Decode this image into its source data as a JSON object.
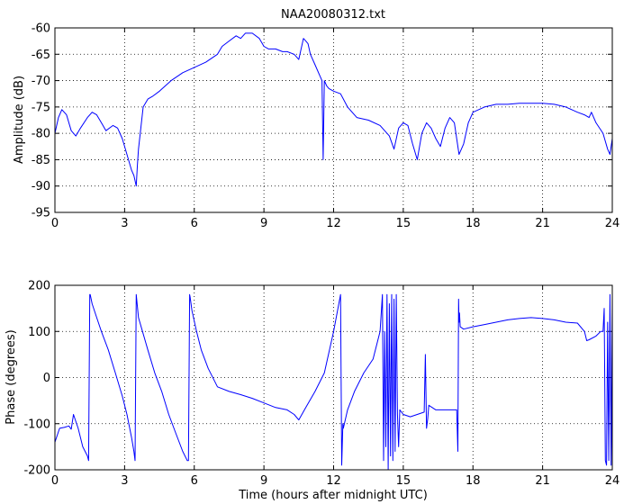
{
  "chart_data": [
    {
      "type": "line",
      "title": "NAA20080312.txt",
      "xlabel": "",
      "ylabel": "Amplitude (dB)",
      "xlim": [
        0,
        24
      ],
      "ylim": [
        -95,
        -60
      ],
      "xticks": [
        0,
        3,
        6,
        9,
        12,
        15,
        18,
        21,
        24
      ],
      "yticks": [
        -60,
        -65,
        -70,
        -75,
        -80,
        -85,
        -90,
        -95
      ],
      "grid": true,
      "line_color": "#0000ff",
      "series": [
        {
          "x": [
            0,
            0.15,
            0.3,
            0.5,
            0.7,
            0.9,
            1.1,
            1.4,
            1.6,
            1.8,
            2.0,
            2.2,
            2.5,
            2.7,
            2.9,
            3.1,
            3.3,
            3.4,
            3.5,
            3.55,
            3.6,
            3.7,
            3.8,
            4.0,
            4.2,
            4.5,
            5.0,
            5.5,
            6.0,
            6.5,
            7.0,
            7.2,
            7.5,
            7.8,
            8.0,
            8.2,
            8.5,
            8.8,
            9.0,
            9.2,
            9.5,
            9.8,
            10.0,
            10.3,
            10.5,
            10.7,
            10.8,
            10.9,
            11.0,
            11.2,
            11.4,
            11.5,
            11.55,
            11.6,
            11.65,
            11.7,
            11.8,
            12.0,
            12.3,
            12.6,
            13.0,
            13.5,
            14.0,
            14.2,
            14.4,
            14.6,
            14.8,
            15.0,
            15.2,
            15.4,
            15.6,
            15.8,
            16.0,
            16.2,
            16.4,
            16.6,
            16.8,
            17.0,
            17.2,
            17.4,
            17.6,
            17.8,
            18.0,
            18.5,
            19.0,
            19.5,
            20.0,
            20.5,
            21.0,
            21.5,
            22.0,
            22.5,
            22.8,
            23.0,
            23.1,
            23.3,
            23.6,
            23.8,
            23.9,
            24.0
          ],
          "y": [
            -80,
            -77,
            -75.5,
            -76.5,
            -79.5,
            -80.5,
            -79,
            -77,
            -76,
            -76.5,
            -78,
            -79.5,
            -78.5,
            -79,
            -81,
            -84,
            -87,
            -88,
            -90,
            -86,
            -83,
            -79,
            -75,
            -73.5,
            -73,
            -72,
            -70,
            -68.5,
            -67.5,
            -66.5,
            -65,
            -63.5,
            -62.5,
            -61.5,
            -62,
            -61,
            -61,
            -62,
            -63.5,
            -64,
            -64,
            -64.5,
            -64.5,
            -65,
            -66,
            -62,
            -62.5,
            -63,
            -65,
            -67,
            -69,
            -70,
            -85,
            -70,
            -70.5,
            -71,
            -71.5,
            -72,
            -72.5,
            -75,
            -77,
            -77.5,
            -78.5,
            -79.5,
            -80.5,
            -83,
            -79,
            -78,
            -78.5,
            -82,
            -85,
            -80,
            -78,
            -79,
            -81,
            -82.5,
            -79,
            -77,
            -78,
            -84,
            -82,
            -78,
            -76,
            -75,
            -74.5,
            -74.5,
            -74.3,
            -74.3,
            -74.3,
            -74.5,
            -75,
            -76,
            -76.5,
            -77,
            -76,
            -78,
            -80,
            -83,
            -84,
            -81
          ]
        }
      ]
    },
    {
      "type": "line",
      "title": "",
      "xlabel": "Time (hours after midnight UTC)",
      "ylabel": "Phase (degrees)",
      "xlim": [
        0,
        24
      ],
      "ylim": [
        -200,
        200
      ],
      "xticks": [
        0,
        3,
        6,
        9,
        12,
        15,
        18,
        21,
        24
      ],
      "yticks": [
        200,
        100,
        0,
        -100,
        -200
      ],
      "grid": true,
      "line_color": "#0000ff",
      "series": [
        {
          "x": [
            0,
            0.2,
            0.4,
            0.6,
            0.7,
            0.8,
            1.0,
            1.2,
            1.4,
            1.45,
            1.5,
            1.52,
            1.6,
            1.8,
            2.0,
            2.3,
            2.6,
            2.9,
            3.1,
            3.3,
            3.4,
            3.45,
            3.5,
            3.52,
            3.6,
            3.8,
            4.0,
            4.3,
            4.6,
            4.9,
            5.2,
            5.5,
            5.7,
            5.75,
            5.8,
            5.82,
            5.9,
            6.1,
            6.3,
            6.6,
            7.0,
            7.5,
            8.0,
            8.5,
            9.0,
            9.5,
            10.0,
            10.3,
            10.5,
            10.8,
            11.2,
            11.6,
            12.0,
            12.3,
            12.35,
            12.4,
            12.42,
            12.6,
            12.9,
            13.3,
            13.7,
            14.0,
            14.1,
            14.15,
            14.2,
            14.25,
            14.3,
            14.35,
            14.4,
            14.45,
            14.5,
            14.55,
            14.6,
            14.65,
            14.7,
            14.75,
            14.8,
            14.85,
            15.0,
            15.3,
            15.6,
            15.9,
            15.95,
            16.0,
            16.05,
            16.1,
            16.4,
            16.7,
            17.0,
            17.3,
            17.35,
            17.38,
            17.4,
            17.42,
            17.45,
            17.6,
            18.0,
            18.5,
            19.0,
            19.5,
            20.0,
            20.5,
            21.0,
            21.5,
            22.0,
            22.5,
            22.8,
            22.9,
            23.0,
            23.3,
            23.5,
            23.6,
            23.65,
            23.7,
            23.75,
            23.8,
            23.85,
            23.9,
            23.95,
            24.0
          ],
          "y": [
            -140,
            -110,
            -108,
            -105,
            -112,
            -80,
            -110,
            -150,
            -170,
            -180,
            180,
            180,
            160,
            130,
            100,
            60,
            10,
            -40,
            -80,
            -130,
            -160,
            -180,
            180,
            170,
            130,
            95,
            60,
            10,
            -30,
            -80,
            -120,
            -160,
            -180,
            -180,
            180,
            175,
            145,
            100,
            60,
            20,
            -20,
            -30,
            -37,
            -45,
            -55,
            -65,
            -70,
            -80,
            -92,
            -65,
            -30,
            10,
            100,
            180,
            -190,
            -100,
            -110,
            -70,
            -30,
            10,
            40,
            100,
            180,
            -180,
            100,
            -150,
            180,
            -200,
            160,
            -170,
            180,
            -180,
            170,
            -160,
            180,
            -80,
            -150,
            -70,
            -80,
            -85,
            -80,
            -75,
            50,
            -110,
            -90,
            -60,
            -70,
            -70,
            -70,
            -70,
            -160,
            170,
            120,
            140,
            110,
            105,
            110,
            115,
            120,
            125,
            128,
            130,
            128,
            125,
            120,
            118,
            100,
            80,
            82,
            90,
            100,
            100,
            150,
            -180,
            -190,
            120,
            -180,
            180,
            -190,
            180
          ]
        }
      ]
    }
  ]
}
